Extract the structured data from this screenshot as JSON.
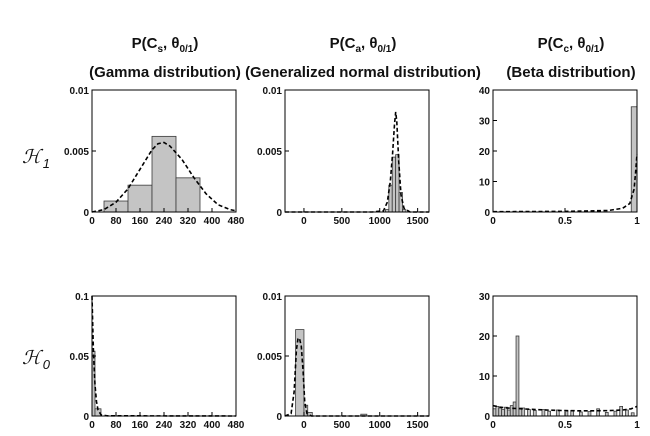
{
  "columns": [
    {
      "title_main": "P(C",
      "title_sub": "s",
      "title_params": ", θ",
      "title_params_sub": "0/1",
      "title_close": ")",
      "subtitle": "(Gamma distribution)"
    },
    {
      "title_main": "P(C",
      "title_sub": "a",
      "title_params": ", θ",
      "title_params_sub": "0/1",
      "title_close": ")",
      "subtitle": "(Generalized normal distribution)"
    },
    {
      "title_main": "P(C",
      "title_sub": "c",
      "title_params": ", θ",
      "title_params_sub": "0/1",
      "title_close": ")",
      "subtitle": "(Beta distribution)"
    }
  ],
  "rows": [
    {
      "label": "ℋ",
      "label_sub": "1"
    },
    {
      "label": "ℋ",
      "label_sub": "0"
    }
  ],
  "chart_data": [
    {
      "type": "bar",
      "row": 0,
      "col": 0,
      "xlim": [
        0,
        480
      ],
      "ylim": [
        0,
        0.01
      ],
      "xticks": [
        0,
        80,
        160,
        240,
        320,
        400,
        480
      ],
      "xtick_labels": [
        "0",
        "80",
        "160",
        "240",
        "320",
        "400",
        "480"
      ],
      "yticks": [
        0,
        0.005,
        0.01
      ],
      "ytick_labels": [
        "0",
        "0.005",
        "0.01"
      ],
      "bars": [
        {
          "x0": 40,
          "x1": 120,
          "y": 0.0009
        },
        {
          "x0": 120,
          "x1": 200,
          "y": 0.0022
        },
        {
          "x0": 200,
          "x1": 280,
          "y": 0.0062
        },
        {
          "x0": 280,
          "x1": 360,
          "y": 0.0028
        }
      ],
      "fit": [
        [
          0,
          0
        ],
        [
          40,
          0.0002
        ],
        [
          80,
          0.0008
        ],
        [
          120,
          0.0019
        ],
        [
          160,
          0.0035
        ],
        [
          200,
          0.0051
        ],
        [
          220,
          0.0056
        ],
        [
          240,
          0.0057
        ],
        [
          260,
          0.0054
        ],
        [
          300,
          0.0043
        ],
        [
          340,
          0.0028
        ],
        [
          380,
          0.0015
        ],
        [
          420,
          0.0006
        ],
        [
          460,
          0.0002
        ],
        [
          480,
          0.0001
        ]
      ]
    },
    {
      "type": "bar",
      "row": 0,
      "col": 1,
      "xlim": [
        -250,
        1650
      ],
      "ylim": [
        0,
        0.01
      ],
      "xticks": [
        0,
        500,
        1000,
        1500
      ],
      "xtick_labels": [
        "0",
        "500",
        "1000",
        "1500"
      ],
      "yticks": [
        0,
        0.005,
        0.01
      ],
      "ytick_labels": [
        "0",
        "0.005",
        "0.01"
      ],
      "bars": [
        {
          "x0": 1075,
          "x1": 1120,
          "y": 0.0002
        },
        {
          "x0": 1120,
          "x1": 1165,
          "y": 0.0022
        },
        {
          "x0": 1165,
          "x1": 1210,
          "y": 0.0045
        },
        {
          "x0": 1210,
          "x1": 1255,
          "y": 0.0047
        },
        {
          "x0": 1255,
          "x1": 1300,
          "y": 0.0016
        },
        {
          "x0": 1300,
          "x1": 1345,
          "y": 0.0002
        }
      ],
      "fit": [
        [
          -250,
          0
        ],
        [
          900,
          0
        ],
        [
          1050,
          0.0001
        ],
        [
          1100,
          0.0008
        ],
        [
          1140,
          0.0025
        ],
        [
          1170,
          0.0048
        ],
        [
          1195,
          0.0072
        ],
        [
          1210,
          0.0082
        ],
        [
          1225,
          0.0074
        ],
        [
          1250,
          0.0042
        ],
        [
          1280,
          0.0014
        ],
        [
          1320,
          0.0003
        ],
        [
          1400,
          0
        ],
        [
          1650,
          0
        ]
      ]
    },
    {
      "type": "bar",
      "row": 0,
      "col": 2,
      "xlim": [
        0,
        1
      ],
      "ylim": [
        0,
        40
      ],
      "xticks": [
        0,
        0.5,
        1
      ],
      "xtick_labels": [
        "0",
        "0.5",
        "1"
      ],
      "yticks": [
        0,
        10,
        20,
        30,
        40
      ],
      "ytick_labels": [
        "0",
        "10",
        "20",
        "30",
        "40"
      ],
      "bars": [
        {
          "x0": 0.96,
          "x1": 1.0,
          "y": 34.5
        }
      ],
      "fit": [
        [
          0,
          0.1
        ],
        [
          0.5,
          0.2
        ],
        [
          0.8,
          0.5
        ],
        [
          0.9,
          1.2
        ],
        [
          0.95,
          2.8
        ],
        [
          0.98,
          7.5
        ],
        [
          0.99,
          13
        ],
        [
          1.0,
          19
        ]
      ]
    },
    {
      "type": "bar",
      "row": 1,
      "col": 0,
      "xlim": [
        0,
        480
      ],
      "ylim": [
        0,
        0.1
      ],
      "xticks": [
        0,
        80,
        160,
        240,
        320,
        400,
        480
      ],
      "xtick_labels": [
        "0",
        "80",
        "160",
        "240",
        "320",
        "400",
        "480"
      ],
      "yticks": [
        0,
        0.05,
        0.1
      ],
      "ytick_labels": [
        "0",
        "0.05",
        "0.1"
      ],
      "bars": [
        {
          "x0": 0,
          "x1": 10,
          "y": 0.054
        },
        {
          "x0": 10,
          "x1": 30,
          "y": 0.006
        }
      ],
      "fit": [
        [
          0,
          0.1
        ],
        [
          2,
          0.08
        ],
        [
          5,
          0.052
        ],
        [
          10,
          0.026
        ],
        [
          15,
          0.012
        ],
        [
          20,
          0.005
        ],
        [
          30,
          0.001
        ],
        [
          50,
          0.0002
        ],
        [
          480,
          0
        ]
      ]
    },
    {
      "type": "bar",
      "row": 1,
      "col": 1,
      "xlim": [
        -250,
        1650
      ],
      "ylim": [
        0,
        0.01
      ],
      "xticks": [
        0,
        500,
        1000,
        1500
      ],
      "xtick_labels": [
        "0",
        "500",
        "1000",
        "1500"
      ],
      "yticks": [
        0,
        0.005,
        0.01
      ],
      "ytick_labels": [
        "0",
        "0.005",
        "0.01"
      ],
      "bars": [
        {
          "x0": -110,
          "x1": 0,
          "y": 0.0072
        },
        {
          "x0": 0,
          "x1": 50,
          "y": 0.0009
        },
        {
          "x0": 50,
          "x1": 110,
          "y": 0.0003
        },
        {
          "x0": 750,
          "x1": 830,
          "y": 0.00015
        }
      ],
      "fit": [
        [
          -250,
          0
        ],
        [
          -170,
          0.0002
        ],
        [
          -130,
          0.002
        ],
        [
          -100,
          0.0055
        ],
        [
          -80,
          0.0064
        ],
        [
          -60,
          0.0065
        ],
        [
          -35,
          0.0058
        ],
        [
          -10,
          0.0036
        ],
        [
          10,
          0.0012
        ],
        [
          40,
          0.0002
        ],
        [
          100,
          0
        ],
        [
          1650,
          0
        ]
      ]
    },
    {
      "type": "bar",
      "row": 1,
      "col": 2,
      "xlim": [
        0,
        1
      ],
      "ylim": [
        0,
        30
      ],
      "xticks": [
        0,
        0.5,
        1
      ],
      "xtick_labels": [
        "0",
        "0.5",
        "1"
      ],
      "yticks": [
        0,
        10,
        20,
        30
      ],
      "ytick_labels": [
        "0",
        "10",
        "20",
        "30"
      ],
      "bars": [
        {
          "x0": 0.0,
          "x1": 0.02,
          "y": 1.8
        },
        {
          "x0": 0.02,
          "x1": 0.04,
          "y": 2.4
        },
        {
          "x0": 0.04,
          "x1": 0.06,
          "y": 2.0
        },
        {
          "x0": 0.06,
          "x1": 0.08,
          "y": 1.6
        },
        {
          "x0": 0.08,
          "x1": 0.1,
          "y": 2.2
        },
        {
          "x0": 0.1,
          "x1": 0.12,
          "y": 1.5
        },
        {
          "x0": 0.12,
          "x1": 0.14,
          "y": 2.6
        },
        {
          "x0": 0.14,
          "x1": 0.16,
          "y": 3.5
        },
        {
          "x0": 0.16,
          "x1": 0.18,
          "y": 20.0
        },
        {
          "x0": 0.18,
          "x1": 0.2,
          "y": 2.0
        },
        {
          "x0": 0.2,
          "x1": 0.22,
          "y": 2.0
        },
        {
          "x0": 0.24,
          "x1": 0.26,
          "y": 1.6
        },
        {
          "x0": 0.28,
          "x1": 0.3,
          "y": 1.4
        },
        {
          "x0": 0.34,
          "x1": 0.36,
          "y": 1.6
        },
        {
          "x0": 0.38,
          "x1": 0.4,
          "y": 1.2
        },
        {
          "x0": 0.44,
          "x1": 0.46,
          "y": 1.5
        },
        {
          "x0": 0.5,
          "x1": 0.52,
          "y": 1.3
        },
        {
          "x0": 0.54,
          "x1": 0.56,
          "y": 1.4
        },
        {
          "x0": 0.6,
          "x1": 0.62,
          "y": 1.0
        },
        {
          "x0": 0.66,
          "x1": 0.68,
          "y": 1.1
        },
        {
          "x0": 0.72,
          "x1": 0.74,
          "y": 1.8
        },
        {
          "x0": 0.78,
          "x1": 0.8,
          "y": 0.9
        },
        {
          "x0": 0.84,
          "x1": 0.86,
          "y": 1.2
        },
        {
          "x0": 0.88,
          "x1": 0.9,
          "y": 2.4
        },
        {
          "x0": 0.92,
          "x1": 0.94,
          "y": 1.5
        },
        {
          "x0": 0.96,
          "x1": 0.98,
          "y": 0.8
        }
      ],
      "fit": [
        [
          0,
          2.6
        ],
        [
          0.05,
          2.2
        ],
        [
          0.1,
          2.0
        ],
        [
          0.2,
          1.8
        ],
        [
          0.3,
          1.6
        ],
        [
          0.4,
          1.45
        ],
        [
          0.5,
          1.35
        ],
        [
          0.6,
          1.3
        ],
        [
          0.7,
          1.3
        ],
        [
          0.8,
          1.35
        ],
        [
          0.9,
          1.5
        ],
        [
          0.96,
          1.8
        ],
        [
          1.0,
          2.4
        ]
      ]
    }
  ]
}
